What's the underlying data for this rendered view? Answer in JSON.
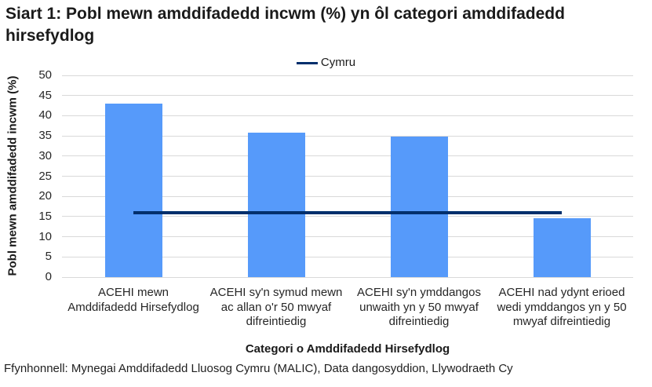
{
  "title": {
    "text": "Siart 1: Pobl mewn amddifadedd incwm (%) yn ôl categori amddifadedd hirsefydlog",
    "lines": [
      "Siart 1: Pobl mewn amddifadedd incwm (%) yn ôl categori amddifadedd",
      "hirsefydlog"
    ]
  },
  "legend": {
    "position": "top",
    "entries": [
      {
        "label": "Cymru",
        "swatch": "line",
        "color": "#002F6C"
      }
    ]
  },
  "source_note": "Ffynhonnell: Mynegai Amddifadedd Lluosog Cymru (MALIC), Data dangosyddion, Llywodraeth Cy",
  "chart_data": {
    "type": "bar",
    "title": "Siart 1: Pobl mewn amddifadedd incwm (%) yn ôl categori amddifadedd hirsefydlog",
    "xlabel": "Categori o Amddifadedd Hirsefydlog",
    "ylabel": "Pobl mewn amddifadedd incwm (%)",
    "ylim": [
      0,
      50
    ],
    "ytick_step": 5,
    "yticks": [
      0,
      5,
      10,
      15,
      20,
      25,
      30,
      35,
      40,
      45,
      50
    ],
    "grid": true,
    "categories": [
      "ACEHI mewn Amddifadedd Hirsefydlog",
      "ACEHI sy'n symud mewn ac allan o'r 50 mwyaf difreintiedig",
      "ACEHI sy'n ymddangos unwaith yn y 50 mwyaf difreintiedig",
      "ACEHI nad ydynt erioed wedi ymddangos yn y 50 mwyaf difreintiedig"
    ],
    "category_lines": [
      [
        "ACEHI mewn",
        "Amddifadedd Hirsefydlog"
      ],
      [
        "ACEHI sy'n symud mewn",
        "ac allan o'r 50 mwyaf",
        "difreintiedig"
      ],
      [
        "ACEHI sy'n ymddangos",
        "unwaith yn y 50 mwyaf",
        "difreintiedig"
      ],
      [
        "ACEHI nad ydynt erioed",
        "wedi ymddangos yn y 50",
        "mwyaf difreintiedig"
      ]
    ],
    "series": [
      {
        "name": "Pobl mewn amddifadedd incwm (%)",
        "values": [
          43,
          35.8,
          34.8,
          14.5
        ]
      }
    ],
    "reference_line": {
      "name": "Cymru",
      "value": 15.9,
      "span": "first-to-last-category-center"
    },
    "colors": {
      "bar": "#569AFA",
      "reference_line": "#002F6C",
      "gridline": "#D9D9D9",
      "text": "#262626"
    }
  }
}
